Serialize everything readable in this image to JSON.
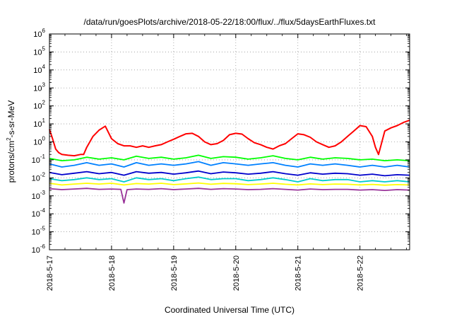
{
  "chart_data": {
    "type": "line",
    "title": "/data/run/goesPlots/archive/2018-05-22/18:00/flux/../flux/5daysEarthFluxes.txt",
    "xlabel": "Coordinated Universal Time (UTC)",
    "ylabel": {
      "base": "protons/cm",
      "sup": "2",
      "rest": "-s-sr-MeV"
    },
    "x_range_days": [
      0,
      5.8
    ],
    "x_ticks": [
      {
        "label": "2018-5-17",
        "day": 0
      },
      {
        "label": "2018-5-18",
        "day": 1
      },
      {
        "label": "2018-5-19",
        "day": 2
      },
      {
        "label": "2018-5-20",
        "day": 3
      },
      {
        "label": "2018-5-21",
        "day": 4
      },
      {
        "label": "2018-5-22",
        "day": 5
      }
    ],
    "y_scale": "log",
    "y_range": [
      1e-06,
      1000000.0
    ],
    "y_ticks": [
      {
        "base": "10",
        "exp": "-6",
        "value": -6
      },
      {
        "base": "10",
        "exp": "-5",
        "value": -5
      },
      {
        "base": "10",
        "exp": "-4",
        "value": -4
      },
      {
        "base": "10",
        "exp": "-3",
        "value": -3
      },
      {
        "base": "10",
        "exp": "-2",
        "value": -2
      },
      {
        "base": "10",
        "exp": "-1",
        "value": -1
      },
      {
        "base": "10",
        "exp": "0",
        "value": 0
      },
      {
        "base": "10",
        "exp": "1",
        "value": 1
      },
      {
        "base": "10",
        "exp": "2",
        "value": 2
      },
      {
        "base": "10",
        "exp": "3",
        "value": 3
      },
      {
        "base": "10",
        "exp": "4",
        "value": 4
      },
      {
        "base": "10",
        "exp": "5",
        "value": 5
      },
      {
        "base": "10",
        "exp": "6",
        "value": 6
      }
    ],
    "grid": true,
    "series": [
      {
        "color": "#ff0000",
        "x": [
          0.0,
          0.05,
          0.1,
          0.15,
          0.2,
          0.3,
          0.4,
          0.5,
          0.55,
          0.6,
          0.7,
          0.8,
          0.9,
          1.0,
          1.1,
          1.2,
          1.3,
          1.4,
          1.5,
          1.6,
          1.7,
          1.8,
          1.9,
          2.0,
          2.1,
          2.2,
          2.3,
          2.4,
          2.5,
          2.6,
          2.7,
          2.8,
          2.9,
          3.0,
          3.1,
          3.2,
          3.3,
          3.4,
          3.5,
          3.6,
          3.7,
          3.8,
          3.9,
          4.0,
          4.1,
          4.2,
          4.3,
          4.4,
          4.5,
          4.6,
          4.7,
          4.8,
          4.9,
          5.0,
          5.1,
          5.2,
          5.25,
          5.3,
          5.4,
          5.5,
          5.6,
          5.7,
          5.8
        ],
        "y": [
          5,
          1.5,
          0.4,
          0.25,
          0.2,
          0.18,
          0.17,
          0.2,
          0.2,
          0.5,
          2,
          4.5,
          7.5,
          1.5,
          0.8,
          0.6,
          0.6,
          0.5,
          0.6,
          0.5,
          0.6,
          0.7,
          1.0,
          1.4,
          2.0,
          2.8,
          3.0,
          2.0,
          1.0,
          0.7,
          0.8,
          1.2,
          2.5,
          3.0,
          2.7,
          1.5,
          0.9,
          0.7,
          0.5,
          0.4,
          0.6,
          0.8,
          1.5,
          2.8,
          2.5,
          1.8,
          1.0,
          0.7,
          0.5,
          0.6,
          1.0,
          2.0,
          4.0,
          8.0,
          7.0,
          2.0,
          0.5,
          0.2,
          4.0,
          6.0,
          8.0,
          12.0,
          16.0
        ]
      },
      {
        "color": "#00ff00",
        "x": [
          0.0,
          0.2,
          0.4,
          0.6,
          0.8,
          1.0,
          1.2,
          1.4,
          1.6,
          1.8,
          2.0,
          2.2,
          2.4,
          2.6,
          2.8,
          3.0,
          3.2,
          3.4,
          3.6,
          3.8,
          4.0,
          4.2,
          4.4,
          4.6,
          4.8,
          5.0,
          5.2,
          5.4,
          5.6,
          5.8
        ],
        "y": [
          0.12,
          0.09,
          0.1,
          0.14,
          0.11,
          0.13,
          0.1,
          0.16,
          0.12,
          0.14,
          0.11,
          0.13,
          0.18,
          0.12,
          0.15,
          0.14,
          0.11,
          0.13,
          0.17,
          0.12,
          0.1,
          0.14,
          0.11,
          0.13,
          0.12,
          0.1,
          0.11,
          0.09,
          0.1,
          0.09
        ]
      },
      {
        "color": "#0080ff",
        "x": [
          0.0,
          0.2,
          0.4,
          0.6,
          0.8,
          1.0,
          1.2,
          1.4,
          1.6,
          1.8,
          2.0,
          2.2,
          2.4,
          2.6,
          2.8,
          3.0,
          3.2,
          3.4,
          3.6,
          3.8,
          4.0,
          4.2,
          4.4,
          4.6,
          4.8,
          5.0,
          5.2,
          5.4,
          5.6,
          5.8
        ],
        "y": [
          0.06,
          0.04,
          0.05,
          0.07,
          0.05,
          0.06,
          0.04,
          0.07,
          0.05,
          0.06,
          0.05,
          0.06,
          0.08,
          0.05,
          0.07,
          0.06,
          0.05,
          0.06,
          0.07,
          0.05,
          0.04,
          0.06,
          0.05,
          0.06,
          0.05,
          0.04,
          0.05,
          0.04,
          0.05,
          0.04
        ]
      },
      {
        "color": "#0000cc",
        "x": [
          0.0,
          0.2,
          0.4,
          0.6,
          0.8,
          1.0,
          1.2,
          1.4,
          1.6,
          1.8,
          2.0,
          2.2,
          2.4,
          2.6,
          2.8,
          3.0,
          3.2,
          3.4,
          3.6,
          3.8,
          4.0,
          4.2,
          4.4,
          4.6,
          4.8,
          5.0,
          5.2,
          5.4,
          5.6,
          5.8
        ],
        "y": [
          0.02,
          0.015,
          0.018,
          0.022,
          0.017,
          0.02,
          0.014,
          0.022,
          0.018,
          0.02,
          0.016,
          0.019,
          0.024,
          0.017,
          0.021,
          0.019,
          0.016,
          0.018,
          0.022,
          0.017,
          0.014,
          0.019,
          0.016,
          0.018,
          0.017,
          0.014,
          0.016,
          0.013,
          0.015,
          0.014
        ]
      },
      {
        "color": "#00cccc",
        "x": [
          0.0,
          0.2,
          0.4,
          0.6,
          0.8,
          1.0,
          1.2,
          1.4,
          1.6,
          1.8,
          2.0,
          2.2,
          2.4,
          2.6,
          2.8,
          3.0,
          3.2,
          3.4,
          3.6,
          3.8,
          4.0,
          4.2,
          4.4,
          4.6,
          4.8,
          5.0,
          5.2,
          5.4,
          5.6,
          5.8
        ],
        "y": [
          0.009,
          0.007,
          0.008,
          0.01,
          0.008,
          0.009,
          0.006,
          0.01,
          0.008,
          0.009,
          0.007,
          0.009,
          0.011,
          0.008,
          0.009,
          0.009,
          0.007,
          0.008,
          0.01,
          0.008,
          0.006,
          0.009,
          0.007,
          0.008,
          0.008,
          0.006,
          0.007,
          0.006,
          0.007,
          0.006
        ]
      },
      {
        "color": "#ffff00",
        "x": [
          0.0,
          0.2,
          0.4,
          0.6,
          0.8,
          1.0,
          1.2,
          1.4,
          1.6,
          1.8,
          2.0,
          2.2,
          2.4,
          2.6,
          2.8,
          3.0,
          3.2,
          3.4,
          3.6,
          3.8,
          4.0,
          4.2,
          4.4,
          4.6,
          4.8,
          5.0,
          5.2,
          5.4,
          5.6,
          5.8
        ],
        "y": [
          0.005,
          0.004,
          0.0045,
          0.005,
          0.0045,
          0.005,
          0.004,
          0.0048,
          0.0045,
          0.005,
          0.0042,
          0.0046,
          0.0052,
          0.0044,
          0.0049,
          0.0047,
          0.0042,
          0.0045,
          0.005,
          0.0044,
          0.004,
          0.0046,
          0.0042,
          0.0045,
          0.0044,
          0.004,
          0.0043,
          0.0039,
          0.0042,
          0.004
        ]
      },
      {
        "color": "#993399",
        "x": [
          0.0,
          0.2,
          0.4,
          0.6,
          0.8,
          1.0,
          1.15,
          1.2,
          1.25,
          1.4,
          1.6,
          1.8,
          2.0,
          2.2,
          2.4,
          2.6,
          2.8,
          3.0,
          3.2,
          3.4,
          3.6,
          3.8,
          4.0,
          4.2,
          4.4,
          4.6,
          4.8,
          5.0,
          5.2,
          5.4,
          5.6,
          5.8
        ],
        "y": [
          0.0025,
          0.0022,
          0.0024,
          0.0026,
          0.0023,
          0.0024,
          0.0023,
          0.0004,
          0.0022,
          0.0024,
          0.0023,
          0.0025,
          0.0022,
          0.0024,
          0.0026,
          0.0023,
          0.0025,
          0.0024,
          0.0022,
          0.0023,
          0.0025,
          0.0023,
          0.0021,
          0.0024,
          0.0022,
          0.0023,
          0.0023,
          0.0021,
          0.0022,
          0.002,
          0.0022,
          0.0021
        ]
      }
    ]
  }
}
